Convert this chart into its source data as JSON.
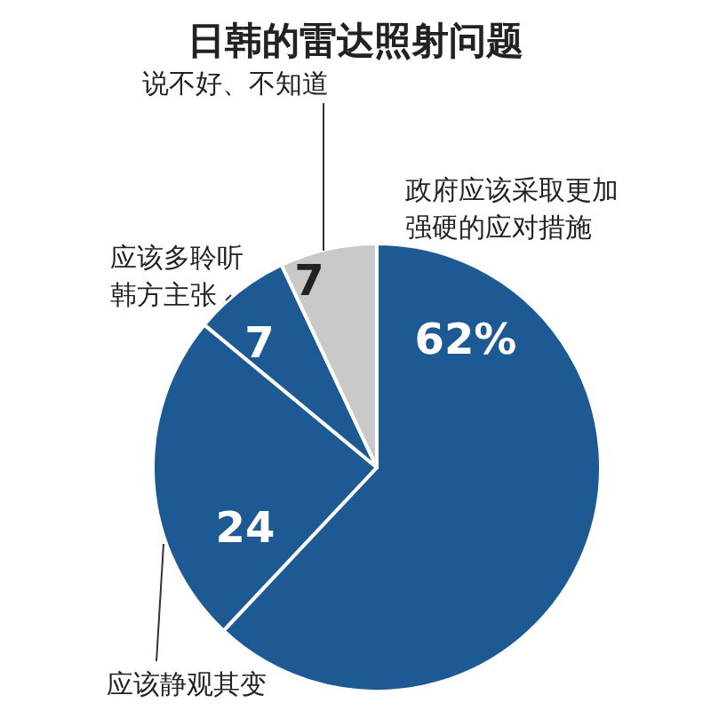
{
  "chart_data": {
    "type": "pie",
    "title": "日韩的雷达照射问题",
    "categories": [
      "政府应该采取更加强硬的应对措施",
      "应该静观其变",
      "应该多聆听韩方主张",
      "说不好、不知道"
    ],
    "values": [
      62,
      24,
      7,
      7
    ],
    "colors": [
      "#1d5a94",
      "#1d5a94",
      "#1d5a94",
      "#c9c9c9"
    ],
    "value_labels": [
      "62%",
      "24",
      "7",
      "7"
    ]
  }
}
